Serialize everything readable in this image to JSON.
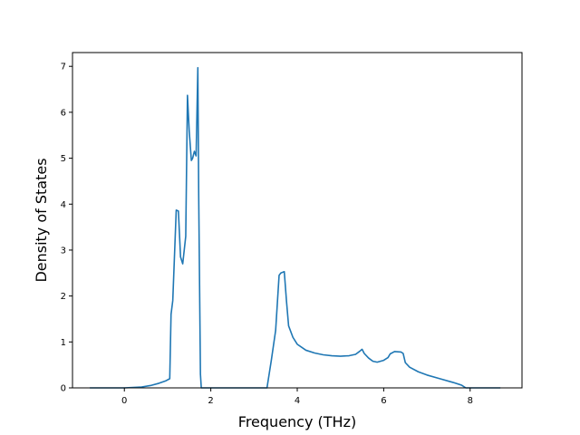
{
  "chart_data": {
    "type": "line",
    "title": "",
    "xlabel": "Frequency (THz)",
    "ylabel": "Density of States",
    "xlim": [
      -1.2,
      9.2
    ],
    "ylim": [
      0,
      7.3
    ],
    "xticks": [
      0,
      2,
      4,
      6,
      8
    ],
    "yticks": [
      0,
      1,
      2,
      3,
      4,
      5,
      6,
      7
    ],
    "grid": false,
    "legend": "none",
    "colors": {
      "line": "#1f77b4",
      "axes": "#000000",
      "background": "#ffffff"
    },
    "series": [
      {
        "x": [
          -0.8,
          -0.4,
          0.0,
          0.2,
          0.4,
          0.6,
          0.8,
          0.95,
          1.05,
          1.08,
          1.12,
          1.2,
          1.25,
          1.3,
          1.35,
          1.42,
          1.46,
          1.5,
          1.55,
          1.58,
          1.62,
          1.66,
          1.7,
          1.72,
          1.76,
          1.78,
          1.82,
          1.9,
          2.2,
          2.6,
          3.0,
          3.3,
          3.4,
          3.5,
          3.58,
          3.62,
          3.7,
          3.75,
          3.8,
          3.9,
          4.0,
          4.2,
          4.4,
          4.6,
          4.8,
          5.0,
          5.2,
          5.35,
          5.45,
          5.5,
          5.55,
          5.65,
          5.75,
          5.85,
          6.0,
          6.1,
          6.15,
          6.25,
          6.4,
          6.45,
          6.5,
          6.6,
          6.8,
          7.0,
          7.3,
          7.6,
          7.8,
          7.9,
          8.1,
          8.4,
          8.7
        ],
        "y": [
          0.0,
          0.0,
          0.0,
          0.01,
          0.02,
          0.05,
          0.1,
          0.15,
          0.2,
          1.6,
          1.9,
          3.87,
          3.85,
          2.85,
          2.7,
          3.3,
          6.37,
          5.6,
          4.95,
          5.0,
          5.15,
          5.05,
          6.97,
          4.2,
          0.3,
          0.0,
          0.0,
          0.0,
          0.0,
          0.0,
          0.0,
          0.0,
          0.6,
          1.25,
          2.45,
          2.5,
          2.53,
          1.9,
          1.35,
          1.1,
          0.95,
          0.82,
          0.76,
          0.72,
          0.7,
          0.69,
          0.7,
          0.73,
          0.8,
          0.84,
          0.75,
          0.65,
          0.58,
          0.56,
          0.6,
          0.66,
          0.74,
          0.79,
          0.78,
          0.75,
          0.55,
          0.45,
          0.35,
          0.28,
          0.2,
          0.12,
          0.06,
          0.0,
          0.0,
          0.0,
          0.0
        ]
      }
    ]
  }
}
